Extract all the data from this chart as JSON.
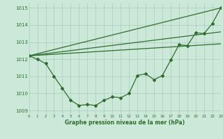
{
  "xlabel": "Graphe pression niveau de la mer (hPa)",
  "bg_color": "#cce8d8",
  "grid_color": "#aaccbb",
  "line_color": "#2d6e2d",
  "xmin": 0,
  "xmax": 23,
  "ymin": 1008.8,
  "ymax": 1015.3,
  "yticks": [
    1009,
    1010,
    1011,
    1012,
    1013,
    1014,
    1015
  ],
  "xticks": [
    0,
    1,
    2,
    3,
    4,
    5,
    6,
    7,
    8,
    9,
    10,
    11,
    12,
    13,
    14,
    15,
    16,
    17,
    18,
    19,
    20,
    21,
    22,
    23
  ],
  "smooth_line1": [
    [
      0,
      1012.2
    ],
    [
      23,
      1015.0
    ]
  ],
  "smooth_line2": [
    [
      0,
      1012.2
    ],
    [
      23,
      1013.6
    ]
  ],
  "smooth_line3": [
    [
      0,
      1012.2
    ],
    [
      23,
      1012.9
    ]
  ],
  "data_series": [
    [
      0,
      1012.2
    ],
    [
      1,
      1012.0
    ],
    [
      2,
      1011.75
    ],
    [
      3,
      1011.0
    ],
    [
      4,
      1010.3
    ],
    [
      5,
      1009.6
    ],
    [
      6,
      1009.3
    ],
    [
      7,
      1009.35
    ],
    [
      8,
      1009.3
    ],
    [
      9,
      1009.6
    ],
    [
      10,
      1009.8
    ],
    [
      11,
      1009.75
    ],
    [
      12,
      1010.0
    ],
    [
      13,
      1011.05
    ],
    [
      14,
      1011.15
    ],
    [
      15,
      1010.8
    ],
    [
      16,
      1011.05
    ],
    [
      17,
      1011.95
    ],
    [
      18,
      1012.85
    ],
    [
      19,
      1012.8
    ],
    [
      20,
      1013.55
    ],
    [
      21,
      1013.5
    ],
    [
      22,
      1014.1
    ],
    [
      23,
      1015.0
    ]
  ]
}
